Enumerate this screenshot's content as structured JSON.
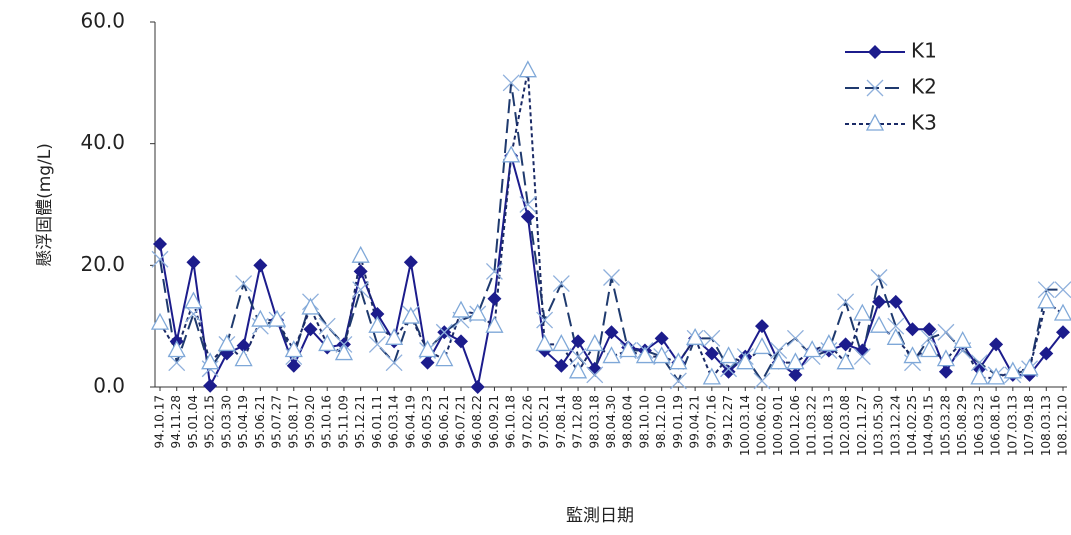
{
  "chart_data": {
    "type": "line",
    "y_label": "懸浮固體(mg/L)",
    "x_label": "監測日期",
    "categories": [
      "94.10.17",
      "94.11.28",
      "95.01.04",
      "95.02.15",
      "95.03.30",
      "95.04.19",
      "95.06.21",
      "95.07.27",
      "95.08.17",
      "95.09.20",
      "95.10.16",
      "95.11.09",
      "95.12.21",
      "96.01.11",
      "96.03.14",
      "96.04.19",
      "96.05.23",
      "96.06.21",
      "96.07.21",
      "96.08.22",
      "96.09.21",
      "96.10.18",
      "97.02.26",
      "97.05.21",
      "97.08.14",
      "97.12.08",
      "98.03.18",
      "98.04.30",
      "98.08.04",
      "98.10.10",
      "98.12.10",
      "99.01.19",
      "99.04.21",
      "99.07.16",
      "99.12.27",
      "100.03.14",
      "100.06.02",
      "100.09.01",
      "100.12.06",
      "101.03.22",
      "101.08.13",
      "102.03.08",
      "102.11.27",
      "103.05.30",
      "103.12.24",
      "104.02.25",
      "104.09.15",
      "105.03.28",
      "105.08.29",
      "106.03.23",
      "106.08.16",
      "107.03.13",
      "107.09.18",
      "108.03.13",
      "108.12.10"
    ],
    "series": [
      {
        "name": "K1",
        "color": "#1c1c8c",
        "marker_color": "#1c1c8c",
        "dash": "",
        "marker": "diamond",
        "values": [
          23.5,
          7.5,
          20.5,
          0.2,
          5.5,
          6.8,
          20,
          11,
          3.5,
          9.5,
          6.5,
          7,
          19,
          12,
          7.5,
          20.5,
          4,
          9,
          7.5,
          0,
          14.5,
          38,
          28,
          6,
          3.5,
          7.5,
          3,
          9,
          6.5,
          6,
          8,
          4,
          8,
          5.5,
          2.5,
          5,
          10,
          4,
          2,
          6,
          6,
          7,
          6,
          14,
          14,
          9.5,
          9.5,
          2.5,
          7,
          3,
          7,
          2,
          2,
          5.5,
          9
        ]
      },
      {
        "name": "K2",
        "color": "#1f3a6e",
        "marker_color": "#8fb0dc",
        "dash": "14 6",
        "marker": "x",
        "values": [
          21,
          4,
          12,
          3,
          7,
          17,
          10,
          11,
          5,
          14,
          10,
          7,
          16,
          7,
          4,
          12,
          6,
          9,
          11,
          12,
          19,
          50,
          30,
          11,
          17,
          5,
          2,
          18,
          6,
          6,
          5,
          1,
          8,
          8,
          3,
          5,
          1,
          6,
          8,
          5,
          6,
          14,
          5,
          18,
          10,
          4,
          8,
          9,
          6,
          4,
          2,
          2,
          3,
          16,
          16
        ]
      },
      {
        "name": "K3",
        "color": "#1a2a66",
        "marker_color": "#7fa8d8",
        "dash": "4 3",
        "marker": "triangle",
        "values": [
          10.5,
          6,
          14,
          4,
          7,
          4.5,
          11,
          11,
          6,
          13,
          7,
          5.5,
          21.5,
          10,
          8,
          11.5,
          6,
          4.5,
          12.5,
          12,
          10,
          38,
          52,
          7,
          7,
          2.5,
          7,
          5,
          6,
          5,
          5,
          4,
          8,
          1.5,
          5,
          4,
          6.5,
          4,
          4,
          6,
          7,
          4,
          12,
          10,
          8,
          5,
          6,
          4.5,
          7.5,
          1.5,
          1.5,
          2.5,
          3,
          14,
          12
        ]
      }
    ],
    "ylim": [
      0,
      60
    ],
    "yticks": [
      {
        "value": 0,
        "label": "0.0"
      },
      {
        "value": 20,
        "label": "20.0"
      },
      {
        "value": 40,
        "label": "40.0"
      },
      {
        "value": 60,
        "label": "60.0"
      }
    ],
    "legend": "top-right"
  }
}
